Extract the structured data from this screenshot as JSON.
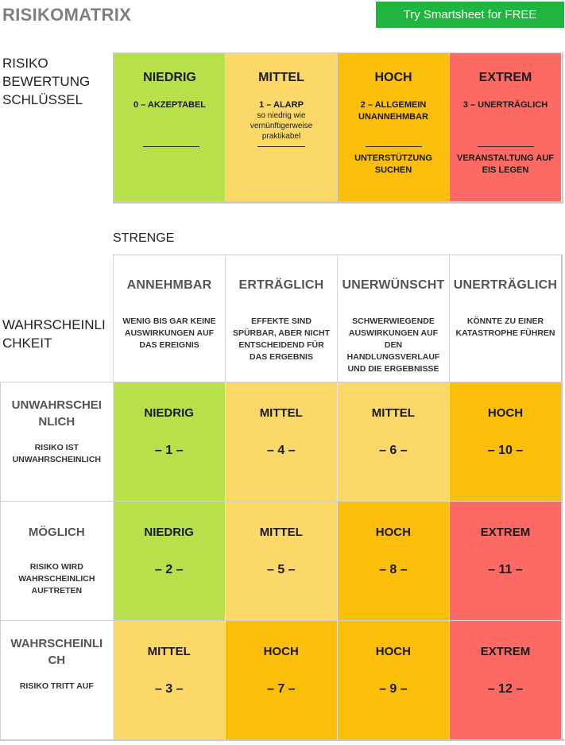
{
  "page": {
    "title": "RISIKOMATRIX",
    "cta_label": "Try Smartsheet for FREE"
  },
  "colors": {
    "niedrig": "#b8e04a",
    "mittel": "#fbd867",
    "hoch": "#fbbf0b",
    "extrem": "#fc6a63",
    "cta": "#1fb53e"
  },
  "key": {
    "label": "RISIKO\nBEWERTUNG\nSCHLÜSSEL",
    "items": [
      {
        "level": "NIEDRIG",
        "code": "0 – AKZEPTABEL",
        "note": "",
        "action": "",
        "color_key": "niedrig"
      },
      {
        "level": "MITTEL",
        "code": "1 – ALARP",
        "note": "so niedrig wie vernünftigerweise praktikabel",
        "action": "",
        "color_key": "mittel"
      },
      {
        "level": "HOCH",
        "code": "2 – ALLGEMEIN UNANNEHMBAR",
        "note": "",
        "action": "UNTERSTÜTZUNG SUCHEN",
        "color_key": "hoch"
      },
      {
        "level": "EXTREM",
        "code": "3 – UNERTRÄGLICH",
        "note": "",
        "action": "VERANSTALTUNG AUF EIS LEGEN",
        "color_key": "extrem"
      }
    ]
  },
  "matrix": {
    "severity_label": "STRENGE",
    "likelihood_label": "WAHRSCHEINLI\nCHKEIT",
    "severity": [
      {
        "title": "ANNEHMBAR",
        "desc": "WENIG BIS GAR KEINE AUSWIRKUNGEN AUF DAS EREIGNIS"
      },
      {
        "title": "ERTRÄGLICH",
        "desc": "EFFEKTE SIND SPÜRBAR, ABER NICHT ENTSCHEIDEND FÜR DAS ERGEBNIS"
      },
      {
        "title": "UNERWÜNSCHT",
        "desc": "SCHWERWIEGENDE AUSWIRKUNGEN AUF DEN HANDLUNGSVERLAUF UND DIE ERGEBNISSE"
      },
      {
        "title": "UNERTRÄGLICH",
        "desc": "KÖNNTE ZU EINER KATASTROPHE FÜHREN"
      }
    ],
    "rows": [
      {
        "title": "UNWAHRSCHEI\nNLICH",
        "desc": "RISIKO IST UNWAHRSCHEINLICH",
        "cells": [
          {
            "level": "NIEDRIG",
            "num": "– 1 –",
            "color_key": "niedrig"
          },
          {
            "level": "MITTEL",
            "num": "– 4 –",
            "color_key": "mittel"
          },
          {
            "level": "MITTEL",
            "num": "– 6 –",
            "color_key": "mittel"
          },
          {
            "level": "HOCH",
            "num": "– 10 –",
            "color_key": "hoch"
          }
        ]
      },
      {
        "title": "MÖGLICH",
        "desc": "RISIKO WIRD WAHRSCHEINLICH AUFTRETEN",
        "cells": [
          {
            "level": "NIEDRIG",
            "num": "– 2 –",
            "color_key": "niedrig"
          },
          {
            "level": "MITTEL",
            "num": "– 5 –",
            "color_key": "mittel"
          },
          {
            "level": "HOCH",
            "num": "– 8 –",
            "color_key": "hoch"
          },
          {
            "level": "EXTREM",
            "num": "– 11 –",
            "color_key": "extrem"
          }
        ]
      },
      {
        "title": "WAHRSCHEINLI\nCH",
        "desc": "RISIKO TRITT AUF",
        "cells": [
          {
            "level": "MITTEL",
            "num": "– 3 –",
            "color_key": "mittel"
          },
          {
            "level": "HOCH",
            "num": "– 7 –",
            "color_key": "hoch"
          },
          {
            "level": "HOCH",
            "num": "– 9 –",
            "color_key": "hoch"
          },
          {
            "level": "EXTREM",
            "num": "– 12 –",
            "color_key": "extrem"
          }
        ]
      }
    ]
  }
}
